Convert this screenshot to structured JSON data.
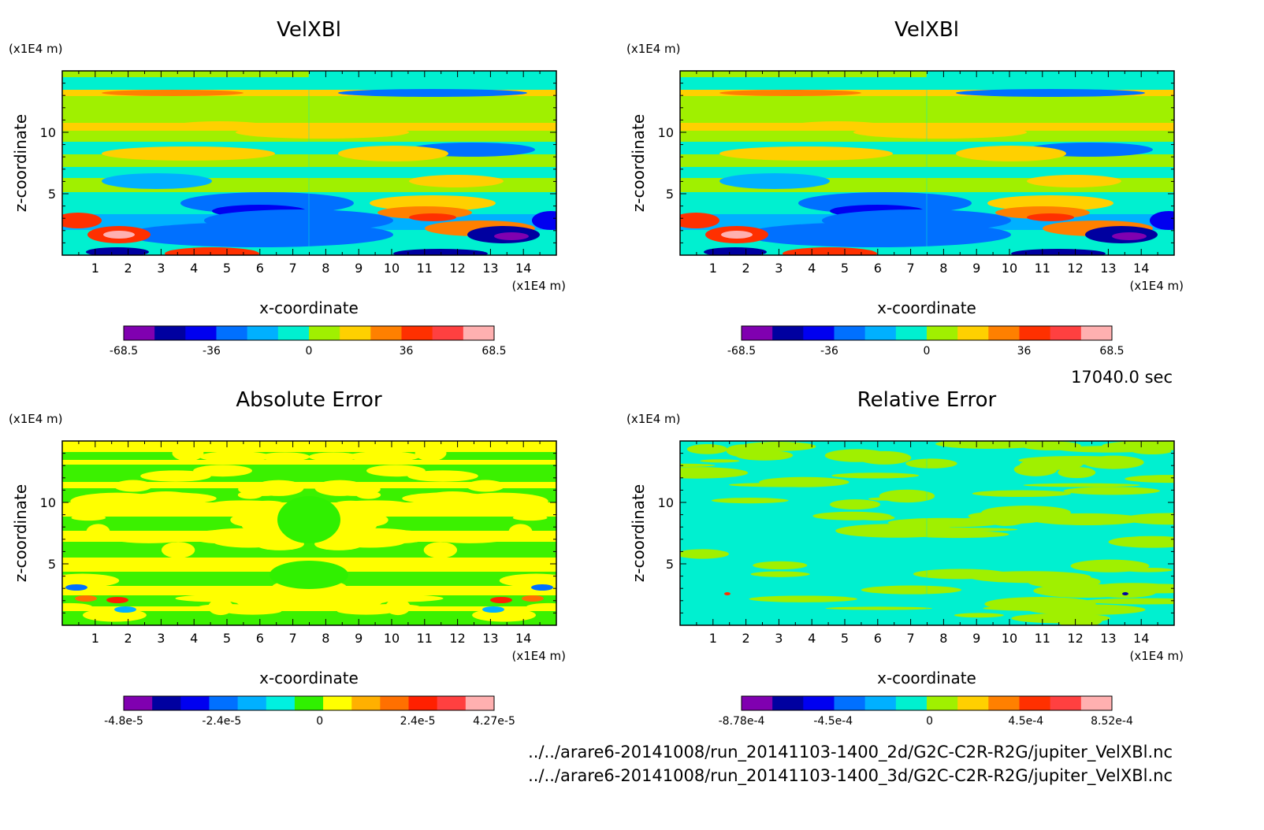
{
  "time_label": "17040.0 sec",
  "file_paths": [
    "../../arare6-20141008/run_20141103-1400_2d/G2C-C2R-R2G/jupiter_VelXBl.nc",
    "../../arare6-20141008/run_20141103-1400_3d/G2C-C2R-R2G/jupiter_VelXBl.nc"
  ],
  "colors": {
    "velocity_scale": [
      "#8000b0",
      "#0000a0",
      "#0000f0",
      "#0070ff",
      "#00b0ff",
      "#00f0d0",
      "#a0f000",
      "#ffd000",
      "#ff8000",
      "#ff3000",
      "#ff4040",
      "#ffb0b0"
    ],
    "abs_error_scale": [
      "#8000b0",
      "#0000a0",
      "#0000f0",
      "#0070ff",
      "#00b0ff",
      "#00f0e0",
      "#30f000",
      "#ffff00",
      "#ffb000",
      "#ff7000",
      "#ff2000",
      "#ff4040",
      "#ffb0b0"
    ],
    "rel_error_scale": [
      "#8000b0",
      "#0000a0",
      "#0000f0",
      "#0070ff",
      "#00b0ff",
      "#00f0d0",
      "#a0f000",
      "#ffd000",
      "#ff8000",
      "#ff3000",
      "#ff4040",
      "#ffb0b0"
    ]
  },
  "chart_data": [
    {
      "type": "heatmap",
      "title": "VelXBl",
      "xlabel": "x-coordinate",
      "ylabel": "z-coordinate",
      "x_unit": "(x1E4 m)",
      "y_unit": "(x1E4 m)",
      "xlim": [
        0,
        15
      ],
      "ylim": [
        0,
        15
      ],
      "x_ticks": [
        1,
        2,
        3,
        4,
        5,
        6,
        7,
        8,
        9,
        10,
        11,
        12,
        13,
        14
      ],
      "y_ticks": [
        5,
        10
      ],
      "colorbar_labels": [
        "-68.5",
        "-36",
        "0",
        "36",
        "68.5"
      ],
      "colorbar_values": [
        -68.5,
        -36,
        0,
        36,
        68.5
      ]
    },
    {
      "type": "heatmap",
      "title": "VelXBl",
      "xlabel": "x-coordinate",
      "ylabel": "z-coordinate",
      "x_unit": "(x1E4 m)",
      "y_unit": "(x1E4 m)",
      "xlim": [
        0,
        15
      ],
      "ylim": [
        0,
        15
      ],
      "x_ticks": [
        1,
        2,
        3,
        4,
        5,
        6,
        7,
        8,
        9,
        10,
        11,
        12,
        13,
        14
      ],
      "y_ticks": [
        5,
        10
      ],
      "colorbar_labels": [
        "-68.5",
        "-36",
        "0",
        "36",
        "68.5"
      ],
      "colorbar_values": [
        -68.5,
        -36,
        0,
        36,
        68.5
      ]
    },
    {
      "type": "heatmap",
      "title": "Absolute Error",
      "xlabel": "x-coordinate",
      "ylabel": "z-coordinate",
      "x_unit": "(x1E4 m)",
      "y_unit": "(x1E4 m)",
      "xlim": [
        0,
        15
      ],
      "ylim": [
        0,
        15
      ],
      "x_ticks": [
        1,
        2,
        3,
        4,
        5,
        6,
        7,
        8,
        9,
        10,
        11,
        12,
        13,
        14
      ],
      "y_ticks": [
        5,
        10
      ],
      "colorbar_labels": [
        "-4.8e-5",
        "-2.4e-5",
        "0",
        "2.4e-5",
        "4.27e-5"
      ],
      "colorbar_values": [
        -4.8e-05,
        -2.4e-05,
        0,
        2.4e-05,
        4.27e-05
      ]
    },
    {
      "type": "heatmap",
      "title": "Relative Error",
      "xlabel": "x-coordinate",
      "ylabel": "z-coordinate",
      "x_unit": "(x1E4 m)",
      "y_unit": "(x1E4 m)",
      "xlim": [
        0,
        15
      ],
      "ylim": [
        0,
        15
      ],
      "x_ticks": [
        1,
        2,
        3,
        4,
        5,
        6,
        7,
        8,
        9,
        10,
        11,
        12,
        13,
        14
      ],
      "y_ticks": [
        5,
        10
      ],
      "colorbar_labels": [
        "-8.78e-4",
        "-4.5e-4",
        "0",
        "4.5e-4",
        "8.52e-4"
      ],
      "colorbar_values": [
        -0.000878,
        -0.00045,
        0,
        0.00045,
        0.000852
      ]
    }
  ]
}
